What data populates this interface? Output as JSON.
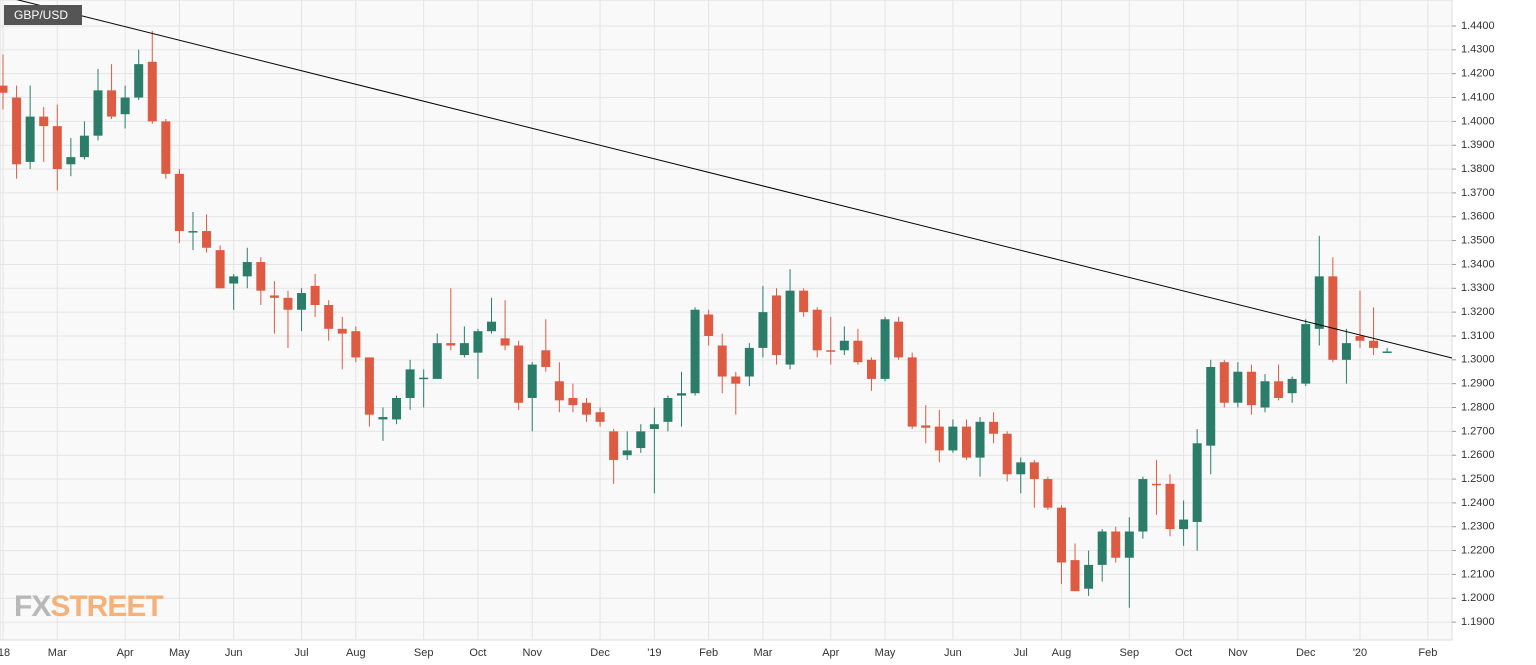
{
  "chart_data": {
    "type": "candlestick",
    "title": "GBP/USD",
    "watermark": [
      "FX",
      "STREET"
    ],
    "up_color": "#2b7d69",
    "down_color": "#dd5a43",
    "trendline_color": "#000000",
    "grid": true,
    "categories": [
      "'18",
      null,
      null,
      null,
      "Mar",
      null,
      null,
      null,
      null,
      "Apr",
      null,
      null,
      null,
      "May",
      null,
      null,
      null,
      "Jun",
      null,
      null,
      null,
      null,
      "Jul",
      null,
      null,
      null,
      "Aug",
      null,
      null,
      null,
      null,
      "Sep",
      null,
      null,
      null,
      "Oct",
      null,
      null,
      null,
      "Nov",
      null,
      null,
      null,
      null,
      "Dec",
      null,
      null,
      null,
      "'19",
      null,
      null,
      null,
      "Feb",
      null,
      null,
      null,
      "Mar",
      null,
      null,
      null,
      null,
      "Apr",
      null,
      null,
      null,
      "May",
      null,
      null,
      null,
      null,
      "Jun",
      null,
      null,
      null,
      null,
      "Jul",
      null,
      null,
      "Aug",
      null,
      null,
      null,
      null,
      "Sep",
      null,
      null,
      null,
      "Oct",
      null,
      null,
      null,
      "Nov",
      null,
      null,
      null,
      null,
      "Dec",
      null,
      null,
      null,
      "'20",
      null,
      null,
      null,
      null,
      "Feb"
    ],
    "open": [
      1.415,
      1.41,
      1.383,
      1.402,
      1.398,
      1.382,
      1.385,
      1.394,
      1.413,
      1.403,
      1.41,
      1.425,
      1.4,
      1.378,
      1.354,
      1.354,
      1.346,
      1.332,
      1.335,
      1.341,
      1.327,
      1.326,
      1.321,
      1.331,
      1.323,
      1.313,
      1.312,
      1.301,
      1.275,
      1.275,
      1.284,
      1.292,
      1.292,
      1.307,
      1.302,
      1.303,
      1.312,
      1.309,
      1.306,
      1.284,
      1.304,
      1.291,
      1.284,
      1.282,
      1.278,
      1.27,
      1.26,
      1.263,
      1.271,
      1.274,
      1.285,
      1.286,
      1.319,
      1.306,
      1.293,
      1.293,
      1.305,
      1.327,
      1.298,
      1.329,
      1.321,
      1.304,
      1.304,
      1.308,
      1.3,
      1.292,
      1.316,
      1.301,
      1.2725,
      1.272,
      1.262,
      1.272,
      1.259,
      1.274,
      1.269,
      1.252,
      1.257,
      1.25,
      1.238,
      1.216,
      1.204,
      1.214,
      1.228,
      1.217,
      1.228,
      1.248,
      1.248,
      1.229,
      1.232,
      1.264,
      1.299,
      1.282,
      1.295,
      1.28,
      1.291,
      1.286,
      1.29,
      1.313,
      1.335,
      1.3,
      1.31,
      1.308,
      1.3035,
      null,
      null,
      null
    ],
    "high": [
      1.428,
      1.415,
      1.415,
      1.406,
      1.407,
      1.393,
      1.4,
      1.422,
      1.424,
      1.415,
      1.43,
      1.438,
      1.401,
      1.38,
      1.362,
      1.361,
      1.348,
      1.336,
      1.347,
      1.343,
      1.333,
      1.329,
      1.33,
      1.336,
      1.325,
      1.318,
      1.314,
      1.301,
      1.28,
      1.285,
      1.3,
      1.296,
      1.311,
      1.33,
      1.314,
      1.313,
      1.326,
      1.325,
      1.308,
      1.299,
      1.317,
      1.299,
      1.29,
      1.284,
      1.28,
      1.271,
      1.27,
      1.273,
      1.28,
      1.285,
      1.295,
      1.322,
      1.321,
      1.311,
      1.295,
      1.307,
      1.331,
      1.33,
      1.338,
      1.33,
      1.322,
      1.318,
      1.314,
      1.313,
      1.301,
      1.318,
      1.318,
      1.303,
      1.281,
      1.279,
      1.275,
      1.275,
      1.276,
      1.278,
      1.27,
      1.259,
      1.258,
      1.251,
      1.239,
      1.223,
      1.22,
      1.229,
      1.23,
      1.234,
      1.251,
      1.258,
      1.252,
      1.241,
      1.271,
      1.3,
      1.3,
      1.299,
      1.298,
      1.294,
      1.298,
      1.293,
      1.317,
      1.352,
      1.343,
      1.313,
      1.329,
      1.322,
      1.305,
      null,
      null,
      null
    ],
    "low": [
      1.405,
      1.376,
      1.38,
      1.383,
      1.371,
      1.377,
      1.384,
      1.392,
      1.401,
      1.397,
      1.409,
      1.399,
      1.376,
      1.349,
      1.346,
      1.345,
      1.33,
      1.321,
      1.33,
      1.323,
      1.311,
      1.305,
      1.312,
      1.318,
      1.308,
      1.296,
      1.299,
      1.272,
      1.266,
      1.273,
      1.279,
      1.28,
      1.292,
      1.304,
      1.301,
      1.292,
      1.311,
      1.304,
      1.279,
      1.27,
      1.295,
      1.278,
      1.278,
      1.274,
      1.272,
      1.248,
      1.258,
      1.261,
      1.244,
      1.27,
      1.272,
      1.285,
      1.306,
      1.286,
      1.277,
      1.289,
      1.301,
      1.298,
      1.296,
      1.318,
      1.301,
      1.298,
      1.302,
      1.298,
      1.287,
      1.291,
      1.3,
      1.271,
      1.265,
      1.257,
      1.261,
      1.258,
      1.251,
      1.265,
      1.249,
      1.244,
      1.238,
      1.237,
      1.206,
      1.203,
      1.201,
      1.207,
      1.215,
      1.196,
      1.225,
      1.235,
      1.226,
      1.222,
      1.22,
      1.252,
      1.28,
      1.28,
      1.277,
      1.278,
      1.283,
      1.282,
      1.289,
      1.306,
      1.299,
      1.29,
      1.305,
      1.302,
      1.303,
      null,
      null,
      null
    ],
    "close": [
      1.412,
      1.382,
      1.402,
      1.398,
      1.38,
      1.385,
      1.394,
      1.413,
      1.402,
      1.41,
      1.424,
      1.4,
      1.378,
      1.354,
      1.354,
      1.347,
      1.33,
      1.335,
      1.341,
      1.329,
      1.326,
      1.321,
      1.328,
      1.323,
      1.313,
      1.311,
      1.301,
      1.277,
      1.276,
      1.284,
      1.296,
      1.2925,
      1.307,
      1.306,
      1.307,
      1.312,
      1.316,
      1.306,
      1.282,
      1.298,
      1.297,
      1.283,
      1.281,
      1.277,
      1.274,
      1.258,
      1.262,
      1.27,
      1.273,
      1.284,
      1.286,
      1.321,
      1.31,
      1.293,
      1.29,
      1.305,
      1.32,
      1.302,
      1.329,
      1.32,
      1.304,
      1.3035,
      1.308,
      1.299,
      1.292,
      1.317,
      1.301,
      1.272,
      1.2715,
      1.262,
      1.272,
      1.259,
      1.274,
      1.269,
      1.252,
      1.257,
      1.25,
      1.238,
      1.215,
      1.203,
      1.214,
      1.228,
      1.217,
      1.228,
      1.25,
      1.2475,
      1.229,
      1.233,
      1.265,
      1.297,
      1.282,
      1.295,
      1.281,
      1.291,
      1.284,
      1.292,
      1.315,
      1.335,
      1.3,
      1.307,
      1.308,
      1.305,
      1.3035,
      null,
      null,
      null
    ],
    "trendline": [
      1.4525,
      1.3033
    ],
    "ylim": [
      1.1825,
      1.4509
    ],
    "yticks": [
      {
        "value": 1.19,
        "label": "1.1900"
      },
      {
        "value": 1.2,
        "label": "1.2000"
      },
      {
        "value": 1.21,
        "label": "1.2100"
      },
      {
        "value": 1.22,
        "label": "1.2200"
      },
      {
        "value": 1.23,
        "label": "1.2300"
      },
      {
        "value": 1.24,
        "label": "1.2400"
      },
      {
        "value": 1.25,
        "label": "1.2500"
      },
      {
        "value": 1.26,
        "label": "1.2600"
      },
      {
        "value": 1.27,
        "label": "1.2700"
      },
      {
        "value": 1.28,
        "label": "1.2800"
      },
      {
        "value": 1.29,
        "label": "1.2900"
      },
      {
        "value": 1.3,
        "label": "1.3000"
      },
      {
        "value": 1.31,
        "label": "1.3100"
      },
      {
        "value": 1.32,
        "label": "1.3200"
      },
      {
        "value": 1.33,
        "label": "1.3300"
      },
      {
        "value": 1.34,
        "label": "1.3400"
      },
      {
        "value": 1.35,
        "label": "1.3500"
      },
      {
        "value": 1.36,
        "label": "1.3600"
      },
      {
        "value": 1.37,
        "label": "1.3700"
      },
      {
        "value": 1.38,
        "label": "1.3800"
      },
      {
        "value": 1.39,
        "label": "1.3900"
      },
      {
        "value": 1.4,
        "label": "1.4000"
      },
      {
        "value": 1.41,
        "label": "1.4100"
      },
      {
        "value": 1.42,
        "label": "1.4200"
      },
      {
        "value": 1.43,
        "label": "1.4300"
      },
      {
        "value": 1.44,
        "label": "1.4400"
      }
    ]
  }
}
